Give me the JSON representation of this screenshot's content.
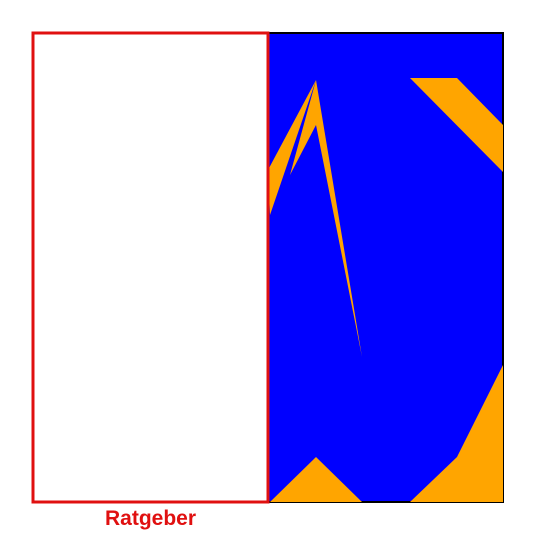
{
  "panels": {
    "left": {
      "caption": "Ratgeber",
      "caption_color": "#e01010",
      "border_color": "#e01010",
      "fill_color": "#ffffff"
    },
    "right": {
      "background_color": "#0000ff",
      "border_color": "#000000",
      "shape_color": "#ffa500"
    }
  }
}
